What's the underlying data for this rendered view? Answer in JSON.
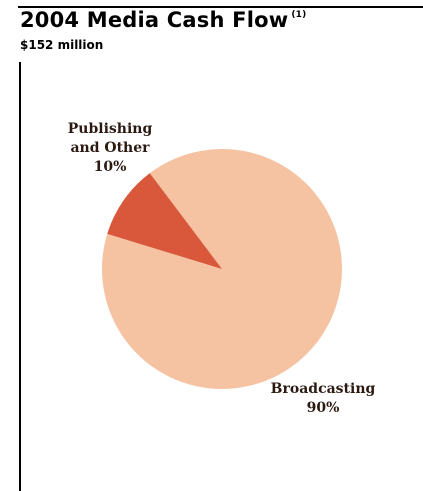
{
  "chart_data": {
    "type": "pie",
    "title": "2004 Media Cash Flow",
    "title_footnote": "(1)",
    "subtitle": "$152 million",
    "slices": [
      {
        "name_lines": [
          "Broadcasting"
        ],
        "value": 90,
        "value_label": "90%",
        "color": "#f5c3a1"
      },
      {
        "name_lines": [
          "Publishing",
          "and Other"
        ],
        "value": 10,
        "value_label": "10%",
        "color": "#d9573a"
      }
    ],
    "legend": "none"
  }
}
